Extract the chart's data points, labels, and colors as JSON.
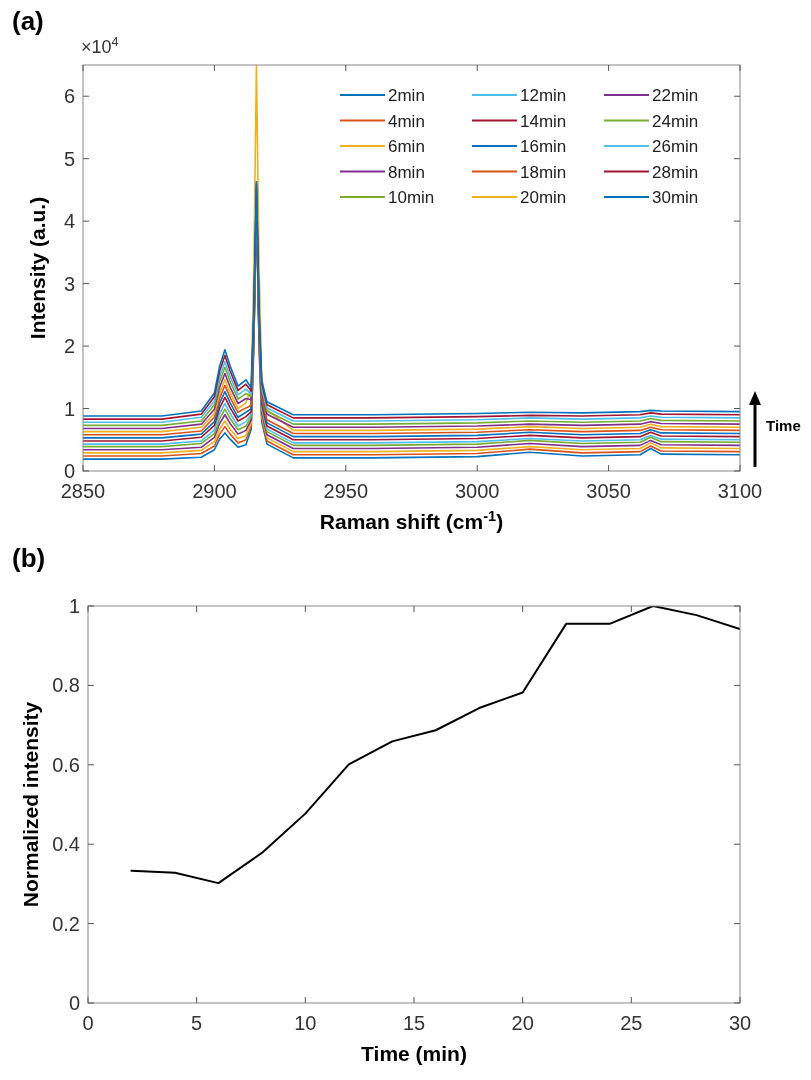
{
  "chart_data": [
    {
      "type": "line",
      "title": "(a)",
      "xlabel": "Raman shift (cm$^{-1}$)",
      "ylabel": "Intensity (a.u.)",
      "annotations": [
        "×10$^{4}$",
        "Time"
      ],
      "legend": "top right",
      "xlim": [
        2850,
        3100
      ],
      "xticks": [
        2850,
        2900,
        2950,
        3000,
        3050,
        3100
      ],
      "ylim": [
        0,
        6.5
      ],
      "yticks": [
        0,
        1,
        2,
        3,
        4,
        5,
        6
      ],
      "x": [
        2850,
        2880,
        2895,
        2900,
        2902,
        2904,
        2906,
        2909,
        2912,
        2914,
        2915,
        2916,
        2917,
        2918,
        2920,
        2930,
        2960,
        3000,
        3020,
        3040,
        3062,
        3066,
        3070,
        3100
      ],
      "series": [
        {
          "name": "2min",
          "color": "#0072bd",
          "values": [
            0.19,
            0.19,
            0.22,
            0.34,
            0.51,
            0.61,
            0.51,
            0.38,
            0.42,
            0.67,
            1.99,
            4.2,
            1.99,
            0.79,
            0.43,
            0.21,
            0.21,
            0.23,
            0.3,
            0.24,
            0.26,
            0.36,
            0.27,
            0.26
          ]
        },
        {
          "name": "4min",
          "color": "#d95319",
          "values": [
            0.24,
            0.24,
            0.28,
            0.4,
            0.59,
            0.71,
            0.59,
            0.45,
            0.5,
            0.72,
            2.04,
            4.25,
            2.04,
            0.84,
            0.48,
            0.26,
            0.26,
            0.28,
            0.35,
            0.29,
            0.31,
            0.4,
            0.32,
            0.31
          ]
        },
        {
          "name": "6min",
          "color": "#edb120",
          "values": [
            0.29,
            0.29,
            0.33,
            0.47,
            0.67,
            0.8,
            0.67,
            0.52,
            0.57,
            0.77,
            2.09,
            4.3,
            2.09,
            0.89,
            0.53,
            0.31,
            0.31,
            0.33,
            0.39,
            0.34,
            0.36,
            0.45,
            0.37,
            0.36
          ]
        },
        {
          "name": "8min",
          "color": "#7e2f8e",
          "values": [
            0.34,
            0.34,
            0.38,
            0.54,
            0.76,
            0.9,
            0.76,
            0.59,
            0.65,
            0.82,
            2.12,
            4.3,
            2.12,
            0.93,
            0.58,
            0.36,
            0.36,
            0.38,
            0.44,
            0.39,
            0.41,
            0.49,
            0.42,
            0.41
          ]
        },
        {
          "name": "10min",
          "color": "#77ac30",
          "values": [
            0.39,
            0.39,
            0.44,
            0.6,
            0.84,
            0.99,
            0.84,
            0.66,
            0.72,
            0.87,
            2.17,
            4.35,
            2.17,
            0.98,
            0.63,
            0.41,
            0.41,
            0.43,
            0.49,
            0.44,
            0.46,
            0.54,
            0.47,
            0.46
          ]
        },
        {
          "name": "12min",
          "color": "#4dbeee",
          "values": [
            0.43,
            0.43,
            0.48,
            0.66,
            0.92,
            1.08,
            0.92,
            0.72,
            0.79,
            0.91,
            2.22,
            4.4,
            2.22,
            1.03,
            0.67,
            0.45,
            0.45,
            0.47,
            0.52,
            0.48,
            0.5,
            0.57,
            0.51,
            0.5
          ]
        },
        {
          "name": "14min",
          "color": "#a2142f",
          "values": [
            0.48,
            0.48,
            0.54,
            0.73,
            1.01,
            1.18,
            1.01,
            0.8,
            0.87,
            0.95,
            2.24,
            4.4,
            2.24,
            1.07,
            0.72,
            0.5,
            0.5,
            0.52,
            0.57,
            0.53,
            0.55,
            0.62,
            0.56,
            0.55
          ]
        },
        {
          "name": "16min",
          "color": "#0072bd",
          "values": [
            0.53,
            0.53,
            0.59,
            0.79,
            1.09,
            1.27,
            1.09,
            0.86,
            0.94,
            1.0,
            2.29,
            4.45,
            2.29,
            1.12,
            0.77,
            0.55,
            0.55,
            0.57,
            0.62,
            0.58,
            0.6,
            0.66,
            0.61,
            0.6
          ]
        },
        {
          "name": "18min",
          "color": "#d95319",
          "values": [
            0.58,
            0.58,
            0.64,
            0.86,
            1.17,
            1.37,
            1.17,
            0.94,
            1.01,
            1.05,
            2.34,
            4.5,
            2.34,
            1.17,
            0.82,
            0.6,
            0.6,
            0.62,
            0.66,
            0.63,
            0.65,
            0.7,
            0.66,
            0.65
          ]
        },
        {
          "name": "20min",
          "color": "#edb120",
          "values": [
            0.63,
            0.63,
            0.7,
            0.92,
            1.25,
            1.46,
            1.25,
            1.0,
            1.09,
            1.33,
            3.27,
            6.5,
            3.27,
            1.51,
            0.98,
            0.65,
            0.65,
            0.67,
            0.71,
            0.68,
            0.7,
            0.75,
            0.71,
            0.7
          ]
        },
        {
          "name": "22min",
          "color": "#7e2f8e",
          "values": [
            0.68,
            0.68,
            0.75,
            0.99,
            1.34,
            1.56,
            1.34,
            1.08,
            1.16,
            1.14,
            2.4,
            4.5,
            2.4,
            1.25,
            0.91,
            0.7,
            0.7,
            0.72,
            0.75,
            0.73,
            0.75,
            0.79,
            0.76,
            0.75
          ]
        },
        {
          "name": "24min",
          "color": "#77ac30",
          "values": [
            0.73,
            0.73,
            0.8,
            1.06,
            1.43,
            1.66,
            1.43,
            1.15,
            1.24,
            1.19,
            2.45,
            4.55,
            2.45,
            1.3,
            0.96,
            0.75,
            0.75,
            0.77,
            0.8,
            0.78,
            0.8,
            0.84,
            0.81,
            0.8
          ]
        },
        {
          "name": "26min",
          "color": "#4dbeee",
          "values": [
            0.78,
            0.78,
            0.86,
            1.12,
            1.51,
            1.75,
            1.51,
            1.22,
            1.31,
            1.23,
            2.48,
            4.55,
            2.48,
            1.35,
            1.01,
            0.8,
            0.8,
            0.82,
            0.85,
            0.83,
            0.85,
            0.88,
            0.86,
            0.85
          ]
        },
        {
          "name": "28min",
          "color": "#a2142f",
          "values": [
            0.83,
            0.83,
            0.91,
            1.19,
            1.6,
            1.85,
            1.6,
            1.29,
            1.39,
            1.28,
            2.53,
            4.6,
            2.53,
            1.4,
            1.06,
            0.85,
            0.85,
            0.87,
            0.89,
            0.88,
            0.9,
            0.93,
            0.91,
            0.9
          ]
        },
        {
          "name": "30min",
          "color": "#0072bd",
          "values": [
            0.88,
            0.88,
            0.96,
            1.25,
            1.68,
            1.94,
            1.68,
            1.36,
            1.46,
            1.33,
            2.57,
            4.63,
            2.57,
            1.44,
            1.11,
            0.9,
            0.9,
            0.92,
            0.94,
            0.93,
            0.95,
            0.97,
            0.96,
            0.95
          ]
        }
      ]
    },
    {
      "type": "line",
      "title": "(b)",
      "xlabel": "Time (min)",
      "ylabel": "Normalized intensity",
      "xlim": [
        0,
        30
      ],
      "xticks": [
        0,
        5,
        10,
        15,
        20,
        25,
        30
      ],
      "ylim": [
        0,
        1
      ],
      "yticks": [
        0,
        0.2,
        0.4,
        0.6,
        0.8,
        1
      ],
      "x": [
        2,
        4,
        6,
        8,
        10,
        12,
        14,
        16,
        18,
        20,
        22,
        24,
        26,
        28,
        30
      ],
      "series": [
        {
          "color": "#000000",
          "values": [
            0.333,
            0.328,
            0.302,
            0.378,
            0.477,
            0.601,
            0.659,
            0.687,
            0.743,
            0.782,
            0.955,
            0.955,
            1.0,
            0.977,
            0.942
          ]
        }
      ]
    }
  ]
}
